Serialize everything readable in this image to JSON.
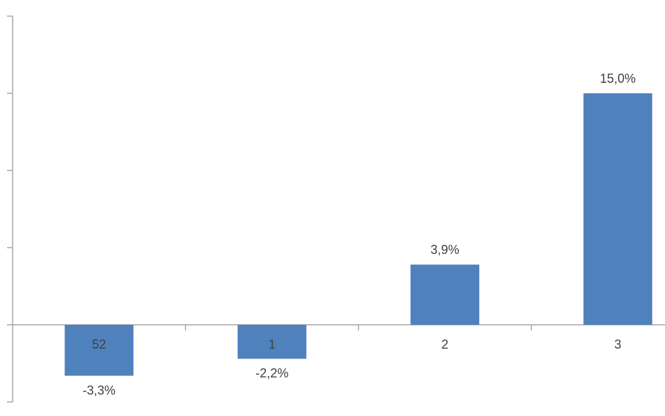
{
  "chart_data": {
    "type": "bar",
    "categories": [
      "52",
      "1",
      "2",
      "3"
    ],
    "values": [
      -3.3,
      -2.2,
      3.9,
      15.0
    ],
    "value_labels": [
      "-3,3%",
      "-2,2%",
      "3,9%",
      "15,0%"
    ],
    "color": "#4f81bd",
    "ylim": [
      -5,
      20
    ],
    "yticks": [
      -5,
      0,
      5,
      10,
      15,
      20
    ]
  }
}
